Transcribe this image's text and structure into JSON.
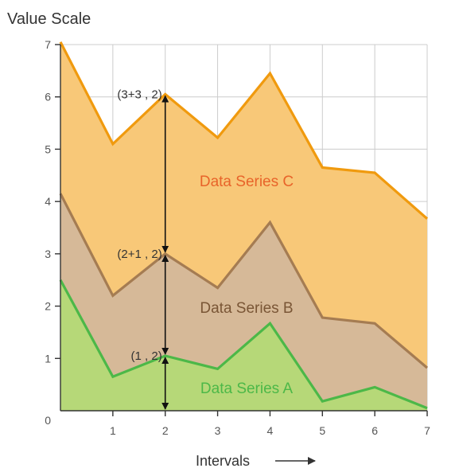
{
  "chart_data": {
    "type": "area",
    "stacked": true,
    "title": "Value Scale",
    "xlabel": "Intervals",
    "ylabel": "",
    "x": [
      0,
      1,
      2,
      3,
      4,
      5,
      6,
      7
    ],
    "xlim": [
      0,
      7
    ],
    "ylim": [
      0,
      7
    ],
    "x_ticks": [
      "1",
      "2",
      "3",
      "4",
      "5",
      "6",
      "7"
    ],
    "y_ticks": [
      "1",
      "2",
      "3",
      "4",
      "5",
      "6",
      "7"
    ],
    "origin_label": "0",
    "grid": true,
    "colors": {
      "grid": "#cccccc",
      "axis": "#333333"
    },
    "series": [
      {
        "name": "Data Series A",
        "values": [
          2.5,
          0.65,
          1.05,
          0.8,
          1.67,
          0.18,
          0.45,
          0.05
        ],
        "line_color": "#4cb848",
        "fill_color": "#b6d878",
        "label_color": "#4cb848"
      },
      {
        "name": "Data Series B",
        "values": [
          1.65,
          1.55,
          1.95,
          1.55,
          1.93,
          1.6,
          1.22,
          0.77
        ],
        "line_color": "#a57c52",
        "fill_color": "#d6b998",
        "label_color": "#7a5636"
      },
      {
        "name": "Data Series C",
        "values": [
          2.9,
          2.9,
          3.05,
          2.87,
          2.85,
          2.87,
          2.88,
          2.85
        ],
        "line_color": "#f09a0e",
        "fill_color": "#f8c878",
        "label_color": "#e8642a"
      }
    ],
    "annotations": [
      {
        "text": "(1 , 2)",
        "x": 2,
        "y": 1.05
      },
      {
        "text": "(2+1 , 2)",
        "x": 2,
        "y": 3.0
      },
      {
        "text": "(3+3 , 2)",
        "x": 2,
        "y": 6.05
      }
    ]
  }
}
